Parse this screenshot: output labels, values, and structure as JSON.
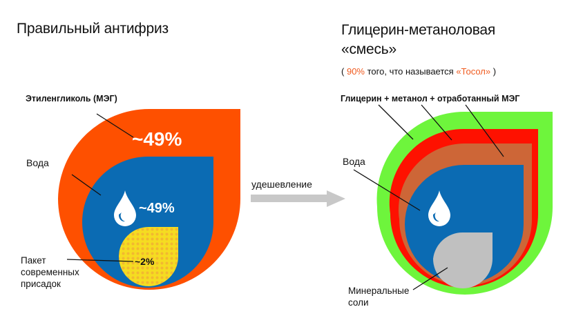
{
  "left": {
    "title": "Правильный антифриз",
    "label_meg": "Этиленгликоль (МЭГ)",
    "label_water": "Вода",
    "label_additives": "Пакет современных присадок",
    "pct_meg": "~49%",
    "pct_water": "~49%",
    "pct_additives": "~2%"
  },
  "arrow": {
    "label": "удешевление"
  },
  "right": {
    "title_line1": "Глицерин-метаноловая",
    "title_line2": "«смесь»",
    "subtitle_open": "(",
    "subtitle_pct": "90%",
    "subtitle_mid": "того, что называется",
    "subtitle_name": "«Тосол»",
    "subtitle_close": ")",
    "label_mix": "Глицерин + метанол + отработанный МЭГ",
    "label_water": "Вода",
    "label_salts": "Минеральные соли"
  },
  "colors": {
    "meg_orange": "#fe5000",
    "water_blue": "#0b6bb3",
    "additives_yellow": "#f5dc21",
    "mix_green": "#6ef53c",
    "mix_red": "#fe1100",
    "mix_brown": "#cd6637",
    "salts_gray": "#c0c0c0",
    "arrow_gray": "#c8c8c8",
    "accent_text": "#f05a1e"
  },
  "icons": [
    "water-drop-icon",
    "arrow-right-icon"
  ]
}
